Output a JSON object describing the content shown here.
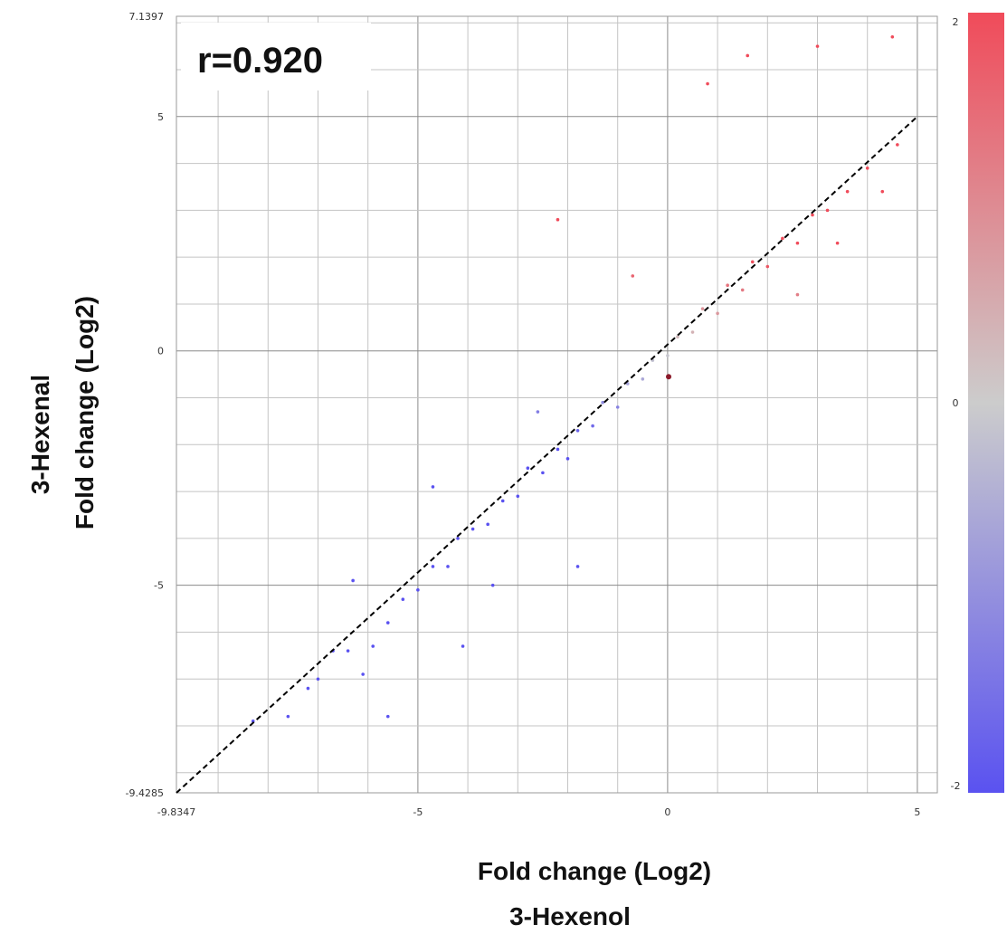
{
  "chart_data": {
    "type": "scatter",
    "title": "",
    "annotation": "r=0.920",
    "xlabel": "Fold change (Log2)",
    "xlabel_sub": "3-Hexenol",
    "ylabel": "Fold change (Log2)",
    "ylabel_sub": "3-Hexenal",
    "xlim": [
      -9.8347,
      5.4
    ],
    "ylim": [
      -9.4285,
      7.1397
    ],
    "x_ticks": [
      {
        "value": -9.8347,
        "label": "-9.8347"
      },
      {
        "value": -5,
        "label": "-5"
      },
      {
        "value": 0,
        "label": "0"
      },
      {
        "value": 5,
        "label": "5"
      }
    ],
    "y_ticks": [
      {
        "value": 7.1397,
        "label": "7.1397"
      },
      {
        "value": 5,
        "label": "5"
      },
      {
        "value": 0,
        "label": "0"
      },
      {
        "value": -5,
        "label": "-5"
      },
      {
        "value": -9.4285,
        "label": "-9.4285"
      }
    ],
    "grid": true,
    "reference_line": {
      "from": [
        -9.8347,
        -9.4285
      ],
      "to": [
        5,
        5
      ],
      "style": "dashed",
      "color": "#000000"
    },
    "colorbar": {
      "min": -2,
      "max": 2,
      "ticks": [
        {
          "value": 2,
          "label": "2"
        },
        {
          "value": 0,
          "label": "0"
        },
        {
          "value": -2,
          "label": "-2"
        }
      ],
      "colors": {
        "low": "#5a52f0",
        "mid": "#cccccc",
        "high": "#f04b5a"
      }
    },
    "highlight_point": {
      "x": 0.02,
      "y": -0.55,
      "color": "#8b1a2a"
    },
    "points": [
      [
        -8.3,
        -7.9
      ],
      [
        -7.6,
        -7.8
      ],
      [
        -7.2,
        -7.2
      ],
      [
        -7.0,
        -7.0
      ],
      [
        -6.7,
        -6.4
      ],
      [
        -6.4,
        -6.4
      ],
      [
        -6.1,
        -6.9
      ],
      [
        -5.9,
        -6.3
      ],
      [
        -5.6,
        -5.8
      ],
      [
        -5.3,
        -5.3
      ],
      [
        -5.0,
        -5.1
      ],
      [
        -4.7,
        -4.6
      ],
      [
        -4.4,
        -4.6
      ],
      [
        -4.2,
        -4.0
      ],
      [
        -3.9,
        -3.8
      ],
      [
        -3.6,
        -3.7
      ],
      [
        -3.3,
        -3.2
      ],
      [
        -3.0,
        -3.1
      ],
      [
        -2.8,
        -2.5
      ],
      [
        -2.5,
        -2.6
      ],
      [
        -2.2,
        -2.1
      ],
      [
        -2.0,
        -2.3
      ],
      [
        -1.8,
        -1.7
      ],
      [
        -1.5,
        -1.6
      ],
      [
        -1.3,
        -1.1
      ],
      [
        -1.0,
        -1.2
      ],
      [
        -0.8,
        -0.7
      ],
      [
        -0.5,
        -0.6
      ],
      [
        -0.3,
        -0.2
      ],
      [
        0.0,
        -0.1
      ],
      [
        0.2,
        0.3
      ],
      [
        0.5,
        0.4
      ],
      [
        0.7,
        0.9
      ],
      [
        1.0,
        0.8
      ],
      [
        1.2,
        1.4
      ],
      [
        1.5,
        1.3
      ],
      [
        1.7,
        1.9
      ],
      [
        2.0,
        1.8
      ],
      [
        2.3,
        2.4
      ],
      [
        2.6,
        2.3
      ],
      [
        2.9,
        2.9
      ],
      [
        3.2,
        3.0
      ],
      [
        3.6,
        3.4
      ],
      [
        4.0,
        3.9
      ],
      [
        4.6,
        4.4
      ],
      [
        4.5,
        6.7
      ],
      [
        3.0,
        6.5
      ],
      [
        1.6,
        6.3
      ],
      [
        0.8,
        5.7
      ],
      [
        3.4,
        2.3
      ],
      [
        4.3,
        3.4
      ],
      [
        2.6,
        1.2
      ],
      [
        -2.2,
        2.8
      ],
      [
        -0.7,
        1.6
      ],
      [
        -3.5,
        -5.0
      ],
      [
        -4.7,
        -2.9
      ],
      [
        -2.6,
        -1.3
      ],
      [
        -1.8,
        -4.6
      ],
      [
        -5.6,
        -7.8
      ],
      [
        -4.1,
        -6.3
      ],
      [
        -6.3,
        -4.9
      ]
    ]
  }
}
